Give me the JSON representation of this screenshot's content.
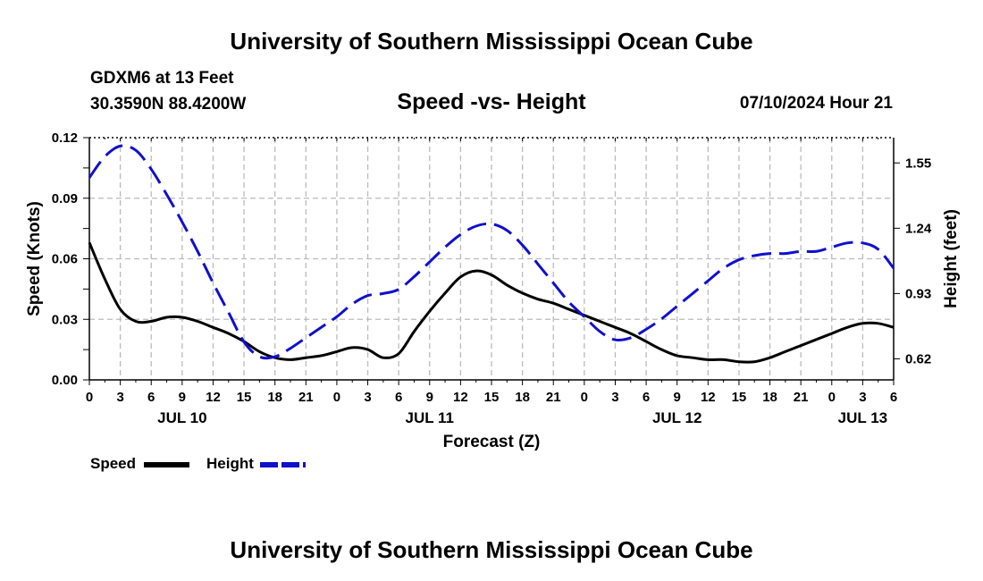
{
  "header": {
    "title": "University of Southern Mississippi Ocean Cube",
    "station_line1": "GDXM6 at 13 Feet",
    "station_line2": "30.3590N  88.4200W",
    "subtitle": "Speed -vs- Height",
    "datetime": "07/10/2024 Hour 21",
    "footer_title": "University of Southern Mississippi Ocean Cube"
  },
  "legend": {
    "speed_label": "Speed",
    "height_label": "Height"
  },
  "colors": {
    "speed": "#000000",
    "height": "#1010cc",
    "grid": "#bbbbbb"
  },
  "chart_data": {
    "type": "line",
    "title": "Speed -vs- Height",
    "xlabel": "Forecast (Z)",
    "ylabel": "Speed (Knots)",
    "y2label": "Height (feet)",
    "x_hours_range": [
      0,
      78
    ],
    "x_tick_labels": [
      "0",
      "3",
      "6",
      "9",
      "12",
      "15",
      "18",
      "21",
      "0",
      "3",
      "6",
      "9",
      "12",
      "15",
      "18",
      "21",
      "0",
      "3",
      "6",
      "9",
      "12",
      "15",
      "18",
      "21",
      "0",
      "3",
      "6"
    ],
    "date_labels": [
      {
        "label": "JUL 10",
        "hour": 9
      },
      {
        "label": "JUL 11",
        "hour": 33
      },
      {
        "label": "JUL 12",
        "hour": 57
      },
      {
        "label": "JUL 13",
        "hour": 75
      }
    ],
    "ylim": [
      0,
      0.12
    ],
    "y_ticks": [
      "0.00",
      "0.03",
      "0.06",
      "0.09",
      "0.12"
    ],
    "y2lim": [
      0.52,
      1.67
    ],
    "y2_ticks": [
      "0.62",
      "0.93",
      "1.24",
      "1.55"
    ],
    "grid": true,
    "series": [
      {
        "name": "Speed",
        "axis": "left",
        "style": "solid",
        "x": [
          0,
          1.5,
          3,
          4.5,
          6,
          7.5,
          9,
          10.5,
          12,
          13.5,
          15,
          16.5,
          18,
          19.5,
          21,
          22.5,
          24,
          25.5,
          27,
          28.5,
          30,
          31.5,
          33,
          34.5,
          36,
          37.5,
          39,
          40.5,
          42,
          43.5,
          45,
          46.5,
          48,
          49.5,
          51,
          52.5,
          54,
          55.5,
          57,
          58.5,
          60,
          61.5,
          63,
          64.5,
          66,
          67.5,
          69,
          70.5,
          72,
          73.5,
          75,
          76.5,
          78
        ],
        "values": [
          0.068,
          0.05,
          0.035,
          0.029,
          0.029,
          0.031,
          0.031,
          0.029,
          0.026,
          0.023,
          0.019,
          0.014,
          0.011,
          0.01,
          0.011,
          0.012,
          0.014,
          0.016,
          0.015,
          0.011,
          0.013,
          0.024,
          0.034,
          0.043,
          0.051,
          0.054,
          0.052,
          0.047,
          0.043,
          0.04,
          0.038,
          0.035,
          0.032,
          0.029,
          0.026,
          0.023,
          0.019,
          0.015,
          0.012,
          0.011,
          0.01,
          0.01,
          0.009,
          0.009,
          0.011,
          0.014,
          0.017,
          0.02,
          0.023,
          0.026,
          0.028,
          0.028,
          0.026
        ]
      },
      {
        "name": "Height",
        "axis": "right",
        "style": "dashed",
        "x": [
          0,
          1.5,
          3,
          4.5,
          6,
          7.5,
          9,
          10.5,
          12,
          13.5,
          15,
          16.5,
          18,
          19.5,
          21,
          22.5,
          24,
          25.5,
          27,
          28.5,
          30,
          31.5,
          33,
          34.5,
          36,
          37.5,
          39,
          40.5,
          42,
          43.5,
          45,
          46.5,
          48,
          49.5,
          51,
          52.5,
          54,
          55.5,
          57,
          58.5,
          60,
          61.5,
          63,
          64.5,
          66,
          67.5,
          69,
          70.5,
          72,
          73.5,
          75,
          76.5,
          78
        ],
        "values": [
          1.48,
          1.58,
          1.63,
          1.61,
          1.52,
          1.4,
          1.27,
          1.13,
          0.98,
          0.84,
          0.7,
          0.63,
          0.63,
          0.67,
          0.72,
          0.77,
          0.82,
          0.88,
          0.92,
          0.93,
          0.95,
          1.01,
          1.08,
          1.15,
          1.21,
          1.25,
          1.26,
          1.23,
          1.16,
          1.07,
          0.98,
          0.89,
          0.82,
          0.75,
          0.71,
          0.72,
          0.76,
          0.81,
          0.87,
          0.93,
          0.99,
          1.05,
          1.09,
          1.11,
          1.12,
          1.12,
          1.13,
          1.13,
          1.15,
          1.17,
          1.17,
          1.14,
          1.05
        ]
      }
    ]
  }
}
